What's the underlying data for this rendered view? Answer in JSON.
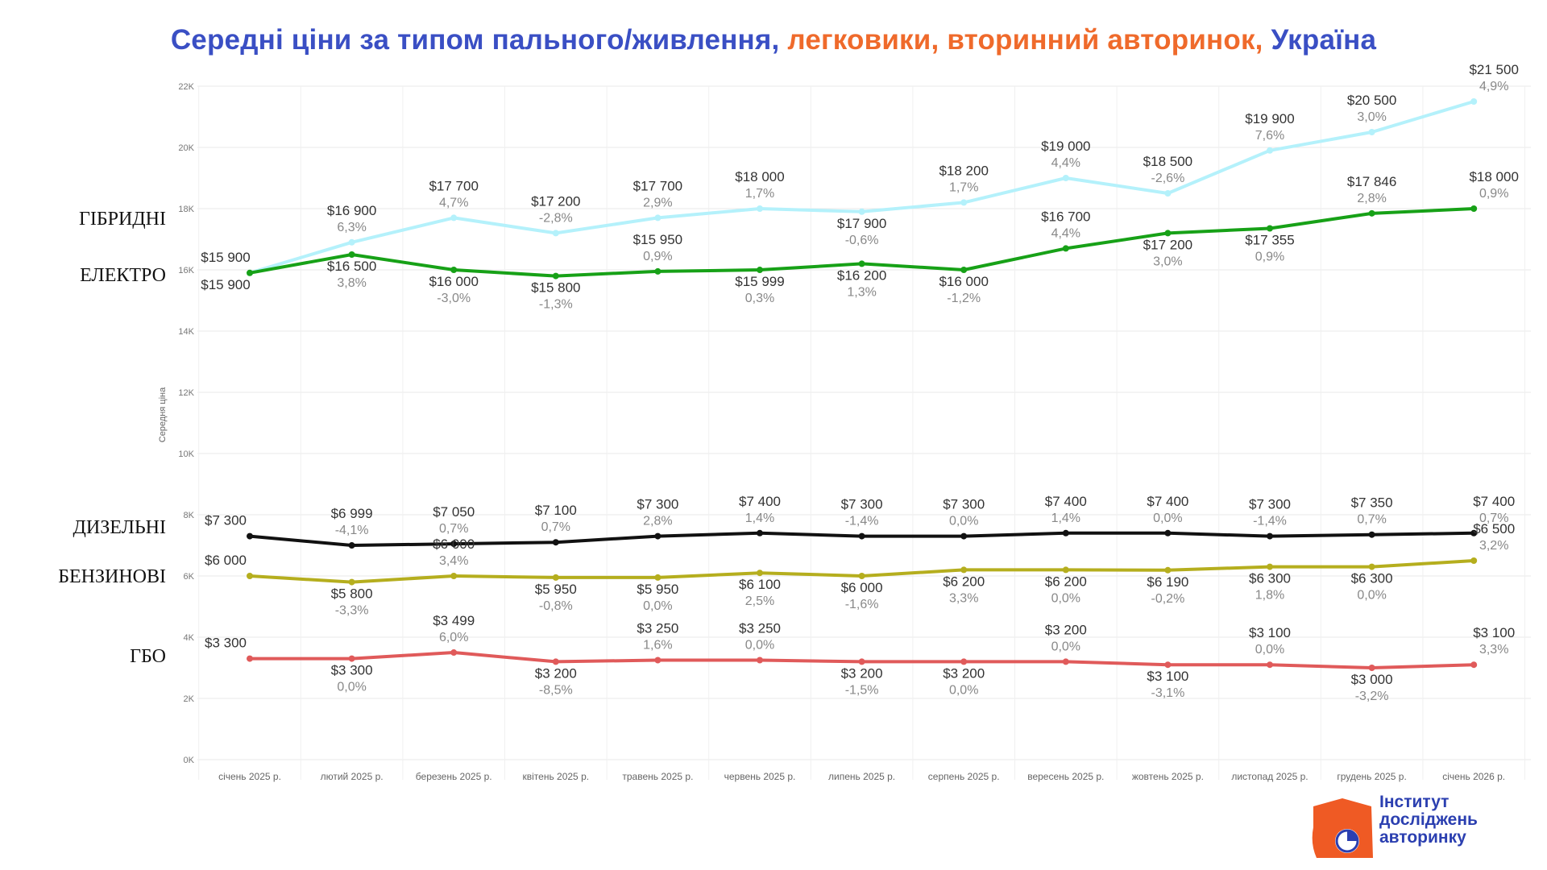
{
  "title": {
    "part1": "Середні ціни за типом пального/живлення, ",
    "part2": "легковики, вторинний авторинок, ",
    "part3": "Україна",
    "color_blue": "#3a4fc4",
    "color_orange": "#ef6a2b"
  },
  "chart_data": {
    "type": "line",
    "ylabel": "Середня ціна",
    "ylim": [
      0,
      22000
    ],
    "yticks": [
      "0K",
      "2K",
      "4K",
      "6K",
      "8K",
      "10K",
      "12K",
      "14K",
      "16K",
      "18K",
      "20K",
      "22K"
    ],
    "grid": true,
    "categories": [
      "січень 2025 р.",
      "лютий 2025 р.",
      "березень 2025 р.",
      "квітень 2025 р.",
      "травень 2025 р.",
      "червень 2025 р.",
      "липень 2025 р.",
      "серпень 2025 р.",
      "вересень 2025 р.",
      "жовтень 2025 р.",
      "листопад 2025 р.",
      "грудень 2025 р.",
      "січень 2026 р."
    ],
    "series": [
      {
        "key": "hybrid",
        "name": "ГІБРИДНІ",
        "color": "#b4f1fb",
        "values": [
          15900,
          16900,
          17700,
          17200,
          17700,
          18000,
          17900,
          18200,
          19000,
          18500,
          19900,
          20500,
          21500
        ],
        "value_labels": [
          "$15 900",
          "$16 900",
          "$17 700",
          "$17 200",
          "$17 700",
          "$18 000",
          "$17 900",
          "$18 200",
          "$19 000",
          "$18 500",
          "$19 900",
          "$20 500",
          "$21 500"
        ],
        "pct_labels": [
          "",
          "6,3%",
          "4,7%",
          "-2,8%",
          "2,9%",
          "1,7%",
          "-0,6%",
          "1,7%",
          "4,4%",
          "-2,6%",
          "7,6%",
          "3,0%",
          "4,9%"
        ],
        "label_pos": [
          "above",
          "above",
          "above",
          "above",
          "above",
          "above",
          "below",
          "above",
          "above",
          "above",
          "above",
          "above",
          "above"
        ]
      },
      {
        "key": "electric",
        "name": "ЕЛЕКТРО",
        "color": "#17a117",
        "values": [
          15900,
          16500,
          16000,
          15800,
          15950,
          15999,
          16200,
          16000,
          16700,
          17200,
          17355,
          17846,
          18000
        ],
        "value_labels": [
          "$15 900",
          "$16 500",
          "$16 000",
          "$15 800",
          "$15 950",
          "$15 999",
          "$16 200",
          "$16 000",
          "$16 700",
          "$17 200",
          "$17 355",
          "$17 846",
          "$18 000"
        ],
        "pct_labels": [
          "",
          "3,8%",
          "-3,0%",
          "-1,3%",
          "0,9%",
          "0,3%",
          "1,3%",
          "-1,2%",
          "4,4%",
          "3,0%",
          "0,9%",
          "2,8%",
          "0,9%"
        ],
        "label_pos": [
          "below",
          "below",
          "below",
          "below",
          "above",
          "below",
          "below",
          "below",
          "above",
          "below",
          "below",
          "above",
          "above"
        ]
      },
      {
        "key": "diesel",
        "name": "ДИЗЕЛЬНІ",
        "color": "#111111",
        "values": [
          7300,
          6999,
          7050,
          7100,
          7300,
          7400,
          7300,
          7300,
          7400,
          7400,
          7300,
          7350,
          7400
        ],
        "value_labels": [
          "$7 300",
          "$6 999",
          "$7 050",
          "$7 100",
          "$7 300",
          "$7 400",
          "$7 300",
          "$7 300",
          "$7 400",
          "$7 400",
          "$7 300",
          "$7 350",
          "$7 400"
        ],
        "pct_labels": [
          "",
          "-4,1%",
          "0,7%",
          "0,7%",
          "2,8%",
          "1,4%",
          "-1,4%",
          "0,0%",
          "1,4%",
          "0,0%",
          "-1,4%",
          "0,7%",
          "0,7%"
        ],
        "label_pos": [
          "above",
          "above",
          "above",
          "above",
          "above",
          "above",
          "above",
          "above",
          "above",
          "above",
          "above",
          "above",
          "above"
        ]
      },
      {
        "key": "petrol",
        "name": "БЕНЗИНОВІ",
        "color": "#b5ae1e",
        "values": [
          6000,
          5800,
          6000,
          5950,
          5950,
          6100,
          6000,
          6200,
          6200,
          6190,
          6300,
          6300,
          6500
        ],
        "value_labels": [
          "$6 000",
          "$5 800",
          "$6 000",
          "$5 950",
          "$5 950",
          "$6 100",
          "$6 000",
          "$6 200",
          "$6 200",
          "$6 190",
          "$6 300",
          "$6 300",
          "$6 500"
        ],
        "pct_labels": [
          "",
          "-3,3%",
          "3,4%",
          "-0,8%",
          "0,0%",
          "2,5%",
          "-1,6%",
          "3,3%",
          "0,0%",
          "-0,2%",
          "1,8%",
          "0,0%",
          "3,2%"
        ],
        "label_pos": [
          "above",
          "below",
          "above",
          "below",
          "below",
          "below",
          "below",
          "below",
          "below",
          "below",
          "below",
          "below",
          "above"
        ]
      },
      {
        "key": "lpg",
        "name": "ГБО",
        "color": "#e05a5a",
        "values": [
          3300,
          3300,
          3499,
          3200,
          3250,
          3250,
          3200,
          3200,
          3200,
          3100,
          3100,
          3000,
          3100
        ],
        "value_labels": [
          "$3 300",
          "$3 300",
          "$3 499",
          "$3 200",
          "$3 250",
          "$3 250",
          "$3 200",
          "$3 200",
          "$3 200",
          "$3 100",
          "$3 100",
          "$3 000",
          "$3 100"
        ],
        "pct_labels": [
          "",
          "0,0%",
          "6,0%",
          "-8,5%",
          "1,6%",
          "0,0%",
          "-1,5%",
          "0,0%",
          "0,0%",
          "-3,1%",
          "0,0%",
          "-3,2%",
          "3,3%"
        ],
        "label_pos": [
          "above",
          "below",
          "above",
          "below",
          "above",
          "above",
          "below",
          "below",
          "above",
          "below",
          "above",
          "below",
          "above"
        ]
      }
    ]
  },
  "logo": {
    "line1": "Інститут",
    "line2": "досліджень",
    "line3": "авторинку",
    "color_orange": "#ef5a24",
    "color_blue": "#2b3fb0"
  }
}
